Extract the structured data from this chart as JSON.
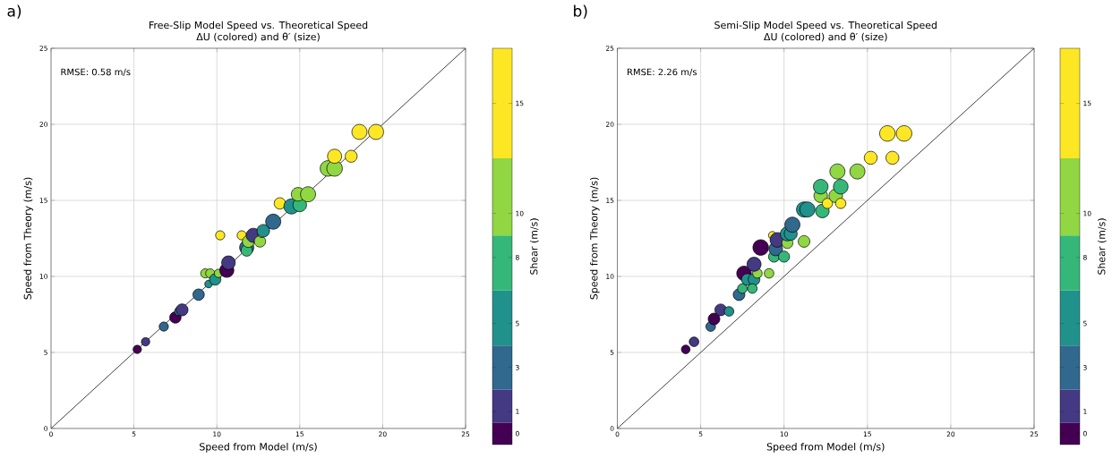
{
  "chart_data": [
    {
      "type": "bubble",
      "title": "Free-Slip Model Speed vs. Theoretical Speed",
      "subtitle": "ΔU (colored) and θ′ (size)",
      "xlabel": "Speed from Model (m/s)",
      "ylabel": "Speed from Theory (m/s)",
      "clabel": "Shear (m/s)",
      "annotations": [
        "a)",
        "RMSE: 0.58 m/s"
      ],
      "xlim": [
        0,
        25
      ],
      "ylim": [
        0,
        25
      ],
      "xticks": [
        0,
        5,
        10,
        15,
        20,
        25
      ],
      "yticks": [
        0,
        5,
        10,
        15,
        20,
        25
      ],
      "grid": true,
      "clim": [
        -0.5,
        17.5
      ],
      "cticks": [
        0,
        1,
        3,
        5,
        8,
        10,
        15
      ],
      "series": [
        {
          "type": "line",
          "x": [
            0,
            25
          ],
          "values": [
            0,
            25
          ],
          "color": "#404040"
        },
        {
          "x": [
            5.2,
            5.7,
            6.8,
            7.5,
            7.7,
            7.9,
            8.9,
            9.5,
            9.3,
            9.6,
            9.9,
            10.1,
            10.2,
            10.6,
            10.7,
            11.5,
            11.8,
            11.8,
            11.9,
            12.2,
            12.6,
            12.7,
            12.8,
            13.4,
            13.8,
            14.5,
            15.0,
            14.9,
            15.5,
            16.7,
            17.1,
            17.1,
            18.1,
            18.6,
            19.6
          ],
          "values": [
            5.2,
            5.7,
            6.7,
            7.3,
            7.7,
            7.8,
            8.8,
            9.5,
            10.2,
            10.2,
            9.8,
            10.2,
            12.7,
            10.4,
            10.9,
            12.7,
            11.9,
            11.7,
            12.3,
            12.7,
            12.3,
            12.8,
            13.0,
            13.6,
            14.8,
            14.6,
            14.7,
            15.4,
            15.4,
            17.1,
            17.1,
            17.9,
            17.9,
            19.5,
            19.5
          ],
          "sizes": [
            0.29,
            0.29,
            0.35,
            0.53,
            0.29,
            0.59,
            0.53,
            0.24,
            0.35,
            0.35,
            0.53,
            0.29,
            0.35,
            0.82,
            0.76,
            0.35,
            0.82,
            0.53,
            0.59,
            0.82,
            0.53,
            0.24,
            0.65,
            0.94,
            0.53,
            0.94,
            0.76,
            0.76,
            0.94,
            1,
            1,
            0.82,
            0.59,
            0.94,
            0.94
          ],
          "colors": [
            "#440154",
            "#443983",
            "#31688e",
            "#440154",
            "#21918c",
            "#443983",
            "#31688e",
            "#21918c",
            "#90d743",
            "#90d743",
            "#21918c",
            "#90d743",
            "#fde725",
            "#440154",
            "#443983",
            "#fde725",
            "#31688e",
            "#35b779",
            "#90d743",
            "#443983",
            "#90d743",
            "#fde725",
            "#21918c",
            "#31688e",
            "#fde725",
            "#21918c",
            "#35b779",
            "#90d743",
            "#90d743",
            "#90d743",
            "#90d743",
            "#fde725",
            "#fde725",
            "#fde725",
            "#fde725"
          ]
        }
      ]
    },
    {
      "type": "bubble",
      "title": "Semi-Slip Model Speed vs. Theoretical Speed",
      "subtitle": "ΔU (colored) and θ′ (size)",
      "xlabel": "Speed from Model (m/s)",
      "ylabel": "Speed from Theory (m/s)",
      "clabel": "Shear (m/s)",
      "annotations": [
        "b)",
        "RMSE: 2.26 m/s"
      ],
      "xlim": [
        0,
        25
      ],
      "ylim": [
        0,
        25
      ],
      "xticks": [
        0,
        5,
        10,
        15,
        20,
        25
      ],
      "yticks": [
        0,
        5,
        10,
        15,
        20,
        25
      ],
      "grid": true,
      "clim": [
        -0.5,
        17.5
      ],
      "cticks": [
        0,
        1,
        3,
        5,
        8,
        10,
        15
      ],
      "series": [
        {
          "type": "line",
          "x": [
            0,
            25
          ],
          "values": [
            0,
            25
          ],
          "color": "#404040"
        },
        {
          "x": [
            4.1,
            4.6,
            5.6,
            5.8,
            6.2,
            6.7,
            7.3,
            7.5,
            7.6,
            7.8,
            8.2,
            8.1,
            8.4,
            8.2,
            8.6,
            9.1,
            9.4,
            9.5,
            9.3,
            9.6,
            10.0,
            10.2,
            10.2,
            10.4,
            10.5,
            11.2,
            11.2,
            11.4,
            12.2,
            12.3,
            12.2,
            12.6,
            13.1,
            13.4,
            13.4,
            13.2,
            14.4,
            15.2,
            16.2,
            17.2,
            16.5
          ],
          "values": [
            5.2,
            5.7,
            6.7,
            7.2,
            7.8,
            7.7,
            8.8,
            9.2,
            10.2,
            9.8,
            9.8,
            9.2,
            10.2,
            10.8,
            11.9,
            10.2,
            11.3,
            11.8,
            12.7,
            12.4,
            11.3,
            12.2,
            12.8,
            12.8,
            13.4,
            12.3,
            14.4,
            14.4,
            15.3,
            14.3,
            15.9,
            14.8,
            15.3,
            15.9,
            14.8,
            16.9,
            16.9,
            17.8,
            19.4,
            19.4,
            17.8
          ],
          "sizes": [
            0.31,
            0.38,
            0.38,
            0.56,
            0.56,
            0.38,
            0.56,
            0.38,
            0.88,
            0.56,
            0.56,
            0.38,
            0.38,
            0.81,
            1,
            0.38,
            0.5,
            0.75,
            0.25,
            0.88,
            0.5,
            0.5,
            0.81,
            0.69,
            0.94,
            0.56,
            0.94,
            0.94,
            0.75,
            0.75,
            0.88,
            0.44,
            0.75,
            0.88,
            0.44,
            0.94,
            0.94,
            0.69,
            1,
            1,
            0.69
          ],
          "colors": [
            "#440154",
            "#443983",
            "#31688e",
            "#440154",
            "#443983",
            "#21918c",
            "#31688e",
            "#35b779",
            "#440154",
            "#21918c",
            "#21918c",
            "#35b779",
            "#90d743",
            "#443983",
            "#440154",
            "#90d743",
            "#35b779",
            "#31688e",
            "#fde725",
            "#443983",
            "#35b779",
            "#90d743",
            "#21918c",
            "#21918c",
            "#31688e",
            "#90d743",
            "#21918c",
            "#21918c",
            "#90d743",
            "#35b779",
            "#35b779",
            "#fde725",
            "#90d743",
            "#35b779",
            "#fde725",
            "#90d743",
            "#90d743",
            "#fde725",
            "#fde725",
            "#fde725",
            "#fde725"
          ]
        }
      ]
    }
  ]
}
